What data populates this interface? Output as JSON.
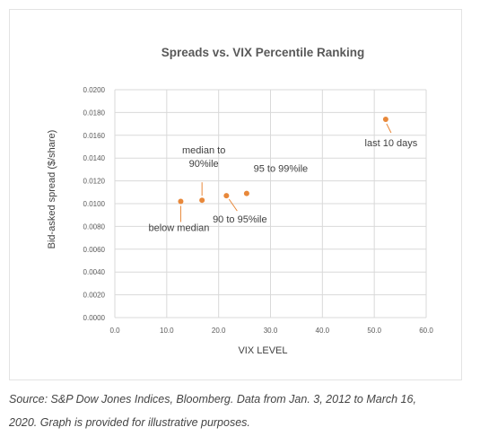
{
  "chart_data": {
    "type": "scatter",
    "title": "Spreads vs. VIX Percentile Ranking",
    "xlabel": "VIX LEVEL",
    "ylabel": "Bid-asked spread ($/share)",
    "xlim": [
      0,
      60
    ],
    "ylim": [
      0,
      0.02
    ],
    "xticks": [
      "0.0",
      "10.0",
      "20.0",
      "30.0",
      "40.0",
      "50.0",
      "60.0"
    ],
    "yticks": [
      "0.0000",
      "0.0020",
      "0.0040",
      "0.0060",
      "0.0080",
      "0.0100",
      "0.0120",
      "0.0140",
      "0.0160",
      "0.0180",
      "0.0200"
    ],
    "grid": true,
    "marker_color": "#e8883a",
    "points": [
      {
        "x": 12.7,
        "y": 0.0102,
        "label": [
          "below median"
        ]
      },
      {
        "x": 16.8,
        "y": 0.0103,
        "label": [
          "median to",
          "90%ile"
        ]
      },
      {
        "x": 21.5,
        "y": 0.0107,
        "label": [
          "90 to 95%ile"
        ]
      },
      {
        "x": 25.4,
        "y": 0.0109,
        "label": [
          "95 to 99%ile"
        ]
      },
      {
        "x": 52.2,
        "y": 0.0174,
        "label": [
          "last 10 days"
        ]
      }
    ]
  },
  "caption": {
    "line1": "Source: S&P Dow Jones Indices, Bloomberg. Data from Jan. 3, 2012 to March 16,",
    "line2": "2020. Graph is provided for illustrative purposes."
  }
}
